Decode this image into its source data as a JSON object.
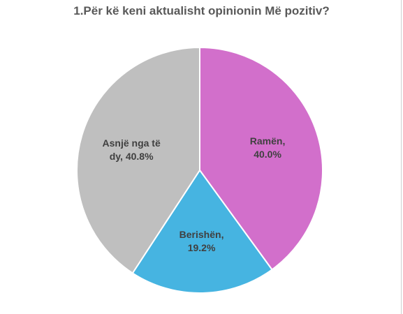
{
  "chart_data": {
    "type": "pie",
    "title": "1.Për kë keni aktualisht opinionin Më pozitiv?",
    "slices": [
      {
        "line1": "Ramën,",
        "line2": "40.0%",
        "value": 40.0,
        "color": "#d26fcb"
      },
      {
        "line1": "Berishën,",
        "line2": "19.2%",
        "value": 19.2,
        "color": "#46b4e1"
      },
      {
        "line1": "Asnjë nga të",
        "line2": "dy, 40.8%",
        "value": 40.8,
        "color": "#bfbfbf"
      }
    ],
    "start_angle_deg": 0,
    "direction": "clockwise",
    "legend": "none"
  }
}
